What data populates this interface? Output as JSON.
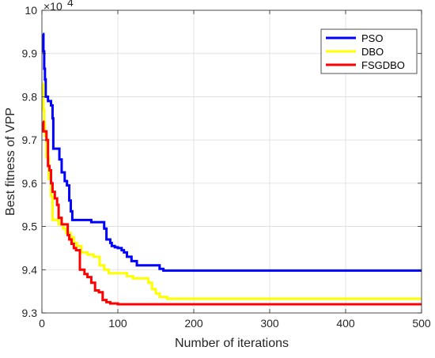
{
  "chart_data": {
    "type": "line",
    "title": "",
    "xlabel": "Number of iterations",
    "ylabel": "Best fitness of VPP",
    "xlim": [
      0,
      500
    ],
    "ylim": [
      9.3,
      10.0
    ],
    "y_multiplier_label": "×10",
    "y_multiplier_exponent": "4",
    "x_ticks": [
      0,
      100,
      200,
      300,
      400,
      500
    ],
    "x_tick_labels": [
      "0",
      "100",
      "200",
      "300",
      "400",
      "500"
    ],
    "y_ticks": [
      9.3,
      9.4,
      9.5,
      9.6,
      9.7,
      9.8,
      9.9,
      10.0
    ],
    "y_tick_labels": [
      "9.3",
      "9.4",
      "9.5",
      "9.6",
      "9.7",
      "9.8",
      "9.9",
      "10"
    ],
    "grid": true,
    "legend_position": "top-right",
    "series": [
      {
        "name": "PSO",
        "color": "#0000ff",
        "points": [
          [
            1,
            9.945
          ],
          [
            2,
            9.945
          ],
          [
            2,
            9.905
          ],
          [
            3,
            9.905
          ],
          [
            3,
            9.865
          ],
          [
            4,
            9.865
          ],
          [
            4,
            9.84
          ],
          [
            5,
            9.84
          ],
          [
            5,
            9.8
          ],
          [
            8,
            9.8
          ],
          [
            8,
            9.79
          ],
          [
            12,
            9.79
          ],
          [
            12,
            9.78
          ],
          [
            14,
            9.78
          ],
          [
            14,
            9.75
          ],
          [
            15,
            9.75
          ],
          [
            15,
            9.68
          ],
          [
            23,
            9.68
          ],
          [
            23,
            9.655
          ],
          [
            26,
            9.655
          ],
          [
            26,
            9.625
          ],
          [
            30,
            9.625
          ],
          [
            30,
            9.605
          ],
          [
            33,
            9.605
          ],
          [
            33,
            9.595
          ],
          [
            36,
            9.595
          ],
          [
            36,
            9.56
          ],
          [
            38,
            9.56
          ],
          [
            38,
            9.535
          ],
          [
            40,
            9.535
          ],
          [
            40,
            9.515
          ],
          [
            65,
            9.515
          ],
          [
            65,
            9.51
          ],
          [
            82,
            9.51
          ],
          [
            82,
            9.495
          ],
          [
            85,
            9.495
          ],
          [
            85,
            9.47
          ],
          [
            90,
            9.47
          ],
          [
            90,
            9.462
          ],
          [
            92,
            9.462
          ],
          [
            92,
            9.455
          ],
          [
            96,
            9.455
          ],
          [
            96,
            9.452
          ],
          [
            100,
            9.452
          ],
          [
            100,
            9.45
          ],
          [
            105,
            9.45
          ],
          [
            105,
            9.445
          ],
          [
            108,
            9.445
          ],
          [
            108,
            9.44
          ],
          [
            112,
            9.44
          ],
          [
            112,
            9.43
          ],
          [
            118,
            9.43
          ],
          [
            118,
            9.42
          ],
          [
            125,
            9.42
          ],
          [
            125,
            9.41
          ],
          [
            155,
            9.41
          ],
          [
            155,
            9.402
          ],
          [
            160,
            9.402
          ],
          [
            160,
            9.398
          ],
          [
            500,
            9.398
          ]
        ]
      },
      {
        "name": "DBO",
        "color": "#ffff00",
        "points": [
          [
            1,
            9.83
          ],
          [
            2,
            9.83
          ],
          [
            2,
            9.77
          ],
          [
            3,
            9.77
          ],
          [
            3,
            9.74
          ],
          [
            4,
            9.74
          ],
          [
            4,
            9.71
          ],
          [
            6,
            9.71
          ],
          [
            6,
            9.66
          ],
          [
            9,
            9.66
          ],
          [
            9,
            9.61
          ],
          [
            12,
            9.61
          ],
          [
            12,
            9.57
          ],
          [
            14,
            9.57
          ],
          [
            14,
            9.515
          ],
          [
            22,
            9.515
          ],
          [
            22,
            9.505
          ],
          [
            28,
            9.505
          ],
          [
            28,
            9.495
          ],
          [
            32,
            9.495
          ],
          [
            32,
            9.485
          ],
          [
            38,
            9.485
          ],
          [
            38,
            9.475
          ],
          [
            42,
            9.475
          ],
          [
            42,
            9.462
          ],
          [
            46,
            9.462
          ],
          [
            46,
            9.455
          ],
          [
            52,
            9.455
          ],
          [
            52,
            9.44
          ],
          [
            60,
            9.44
          ],
          [
            60,
            9.435
          ],
          [
            68,
            9.435
          ],
          [
            68,
            9.43
          ],
          [
            76,
            9.43
          ],
          [
            76,
            9.41
          ],
          [
            82,
            9.41
          ],
          [
            82,
            9.4
          ],
          [
            88,
            9.4
          ],
          [
            88,
            9.392
          ],
          [
            112,
            9.392
          ],
          [
            112,
            9.385
          ],
          [
            120,
            9.385
          ],
          [
            120,
            9.38
          ],
          [
            140,
            9.38
          ],
          [
            140,
            9.37
          ],
          [
            145,
            9.37
          ],
          [
            145,
            9.355
          ],
          [
            150,
            9.355
          ],
          [
            150,
            9.345
          ],
          [
            155,
            9.345
          ],
          [
            155,
            9.337
          ],
          [
            165,
            9.337
          ],
          [
            165,
            9.333
          ],
          [
            500,
            9.333
          ]
        ]
      },
      {
        "name": "FSGDBO",
        "color": "#ff0000",
        "points": [
          [
            1,
            9.742
          ],
          [
            2,
            9.742
          ],
          [
            2,
            9.72
          ],
          [
            6,
            9.72
          ],
          [
            6,
            9.7
          ],
          [
            8,
            9.7
          ],
          [
            8,
            9.64
          ],
          [
            10,
            9.64
          ],
          [
            10,
            9.63
          ],
          [
            12,
            9.63
          ],
          [
            12,
            9.6
          ],
          [
            14,
            9.6
          ],
          [
            14,
            9.58
          ],
          [
            17,
            9.58
          ],
          [
            17,
            9.565
          ],
          [
            20,
            9.565
          ],
          [
            20,
            9.55
          ],
          [
            22,
            9.55
          ],
          [
            22,
            9.52
          ],
          [
            26,
            9.52
          ],
          [
            26,
            9.505
          ],
          [
            34,
            9.505
          ],
          [
            34,
            9.48
          ],
          [
            36,
            9.48
          ],
          [
            36,
            9.47
          ],
          [
            39,
            9.47
          ],
          [
            39,
            9.46
          ],
          [
            42,
            9.46
          ],
          [
            42,
            9.45
          ],
          [
            45,
            9.45
          ],
          [
            45,
            9.445
          ],
          [
            50,
            9.445
          ],
          [
            50,
            9.4
          ],
          [
            56,
            9.4
          ],
          [
            56,
            9.39
          ],
          [
            60,
            9.39
          ],
          [
            60,
            9.383
          ],
          [
            65,
            9.383
          ],
          [
            65,
            9.37
          ],
          [
            70,
            9.37
          ],
          [
            70,
            9.352
          ],
          [
            75,
            9.352
          ],
          [
            75,
            9.348
          ],
          [
            80,
            9.348
          ],
          [
            80,
            9.33
          ],
          [
            85,
            9.33
          ],
          [
            85,
            9.325
          ],
          [
            90,
            9.325
          ],
          [
            90,
            9.322
          ],
          [
            100,
            9.322
          ],
          [
            100,
            9.32
          ],
          [
            500,
            9.32
          ]
        ]
      }
    ]
  }
}
